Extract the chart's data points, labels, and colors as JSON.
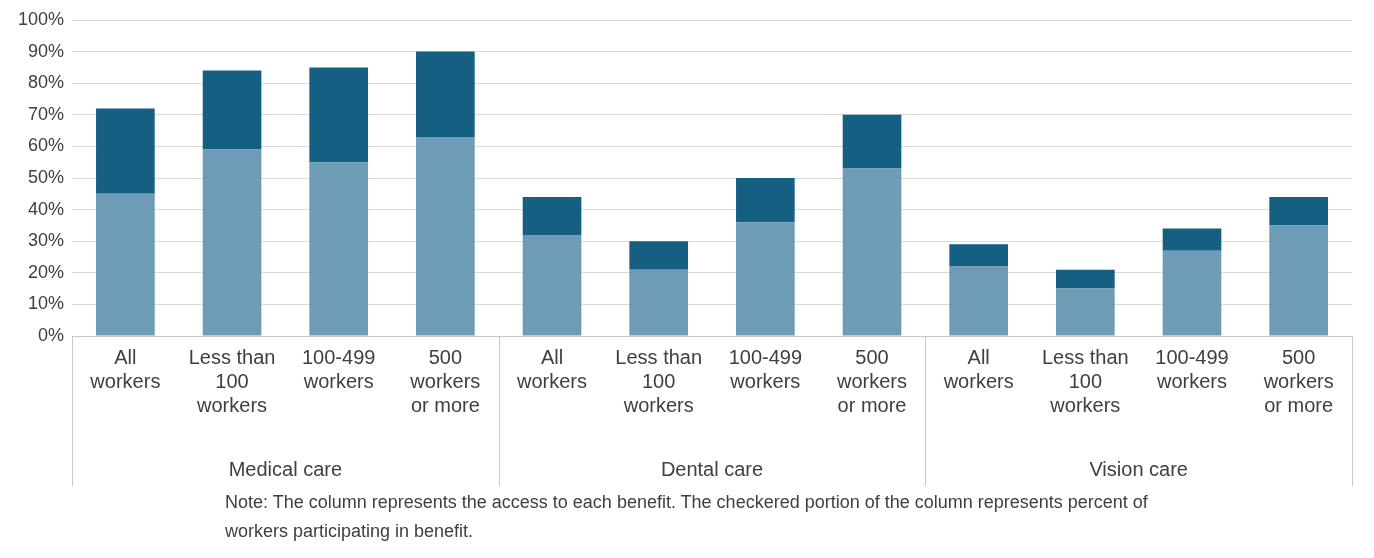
{
  "chart_data": {
    "type": "bar",
    "stacked": true,
    "categories": [
      "All workers",
      "Less than 100 workers",
      "100-499 workers",
      "500 workers or more",
      "All workers",
      "Less than 100 workers",
      "100-499 workers",
      "500 workers or more",
      "All workers",
      "Less than 100 workers",
      "100-499 workers",
      "500 workers or more"
    ],
    "series": [
      {
        "color": "#6e9cb6",
        "values": [
          45,
          59,
          55,
          63,
          32,
          21,
          36,
          53,
          22,
          15,
          27,
          35
        ]
      },
      {
        "color": "#156082",
        "values": [
          27,
          25,
          30,
          27,
          12,
          9,
          14,
          17,
          7,
          6,
          7,
          9
        ]
      }
    ],
    "ylim": [
      0,
      100
    ],
    "yticks": [
      {
        "value": 0,
        "label": "0%"
      },
      {
        "value": 10,
        "label": "10%"
      },
      {
        "value": 20,
        "label": "20%"
      },
      {
        "value": 30,
        "label": "30%"
      },
      {
        "value": 40,
        "label": "40%"
      },
      {
        "value": 50,
        "label": "50%"
      },
      {
        "value": 60,
        "label": "60%"
      },
      {
        "value": 70,
        "label": "70%"
      },
      {
        "value": 80,
        "label": "80%"
      },
      {
        "value": 90,
        "label": "90%"
      },
      {
        "value": 100,
        "label": "100%"
      }
    ],
    "grid": "y",
    "annotations": [
      "Medical care",
      "Dental care",
      "Vision care",
      "Note: The column represents the access to each benefit. The checkered portion of the column represents percent of workers participating in benefit."
    ]
  }
}
